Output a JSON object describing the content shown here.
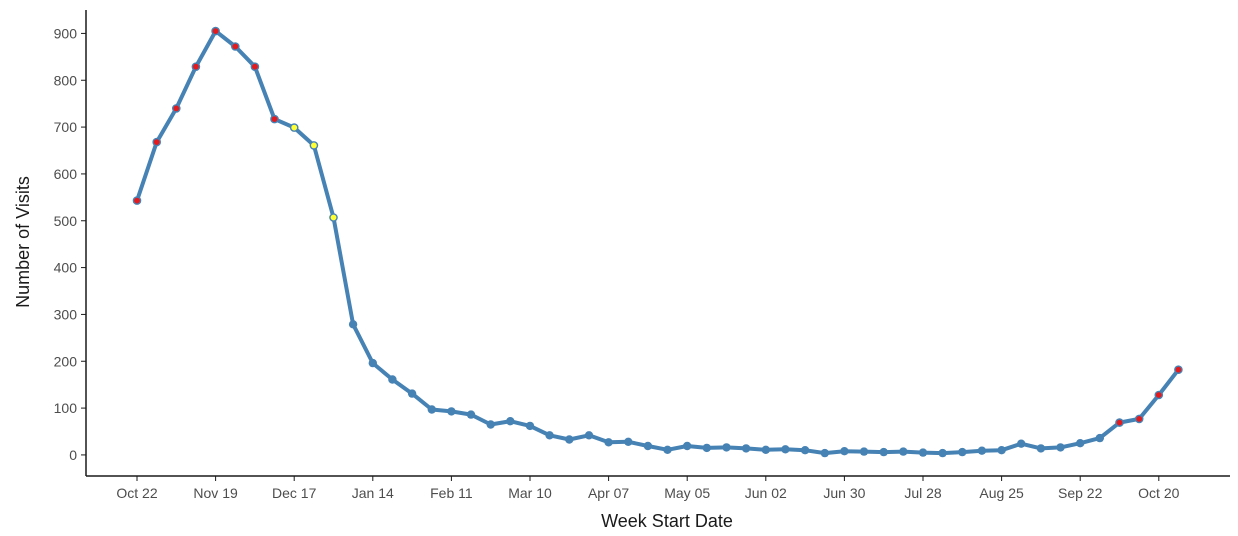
{
  "chart_data": {
    "type": "line",
    "title": "",
    "xlabel": "Week Start Date",
    "ylabel": "Number of Visits",
    "ylim": [
      -45,
      950
    ],
    "y_ticks": [
      0,
      100,
      200,
      300,
      400,
      500,
      600,
      700,
      800,
      900
    ],
    "x_tick_labels": [
      "Oct 22",
      "Nov 19",
      "Dec 17",
      "Jan 14",
      "Feb 11",
      "Mar 10",
      "Apr 07",
      "May 05",
      "Jun 02",
      "Jun 30",
      "Jul 28",
      "Aug 25",
      "Sep 22",
      "Oct 20"
    ],
    "x_tick_week_index": [
      0,
      4,
      8,
      12,
      16,
      20,
      24,
      28,
      32,
      36,
      40,
      44,
      48,
      52
    ],
    "grid": false,
    "legend": "none",
    "colors": {
      "line": "#4682B4",
      "point_default": "#4682B4",
      "point_red": "#E41A1C",
      "point_yellow": "#FFFF33",
      "axis": "#1a1a1a"
    },
    "series": [
      {
        "values": [
          543,
          668,
          740,
          829,
          905,
          872,
          829,
          717,
          699,
          661,
          507,
          279,
          196,
          161,
          131,
          97,
          93,
          86,
          65,
          72,
          62,
          42,
          33,
          42,
          27,
          28,
          19,
          11,
          19,
          15,
          16,
          14,
          11,
          12,
          10,
          4,
          8,
          7,
          6,
          7,
          5,
          4,
          6,
          9,
          10,
          24,
          14,
          16,
          25,
          36,
          69,
          77,
          128,
          182
        ],
        "point_highlight": [
          "red",
          "red",
          "red",
          "red",
          "red",
          "red",
          "red",
          "red",
          "yellow",
          "yellow",
          "yellow",
          "",
          "",
          "",
          "",
          "",
          "",
          "",
          "",
          "",
          "",
          "",
          "",
          "",
          "",
          "",
          "",
          "",
          "",
          "",
          "",
          "",
          "",
          "",
          "",
          "",
          "",
          "",
          "",
          "",
          "",
          "",
          "",
          "",
          "",
          "",
          "",
          "",
          "",
          "",
          "red",
          "red",
          "red",
          "red"
        ]
      }
    ]
  }
}
